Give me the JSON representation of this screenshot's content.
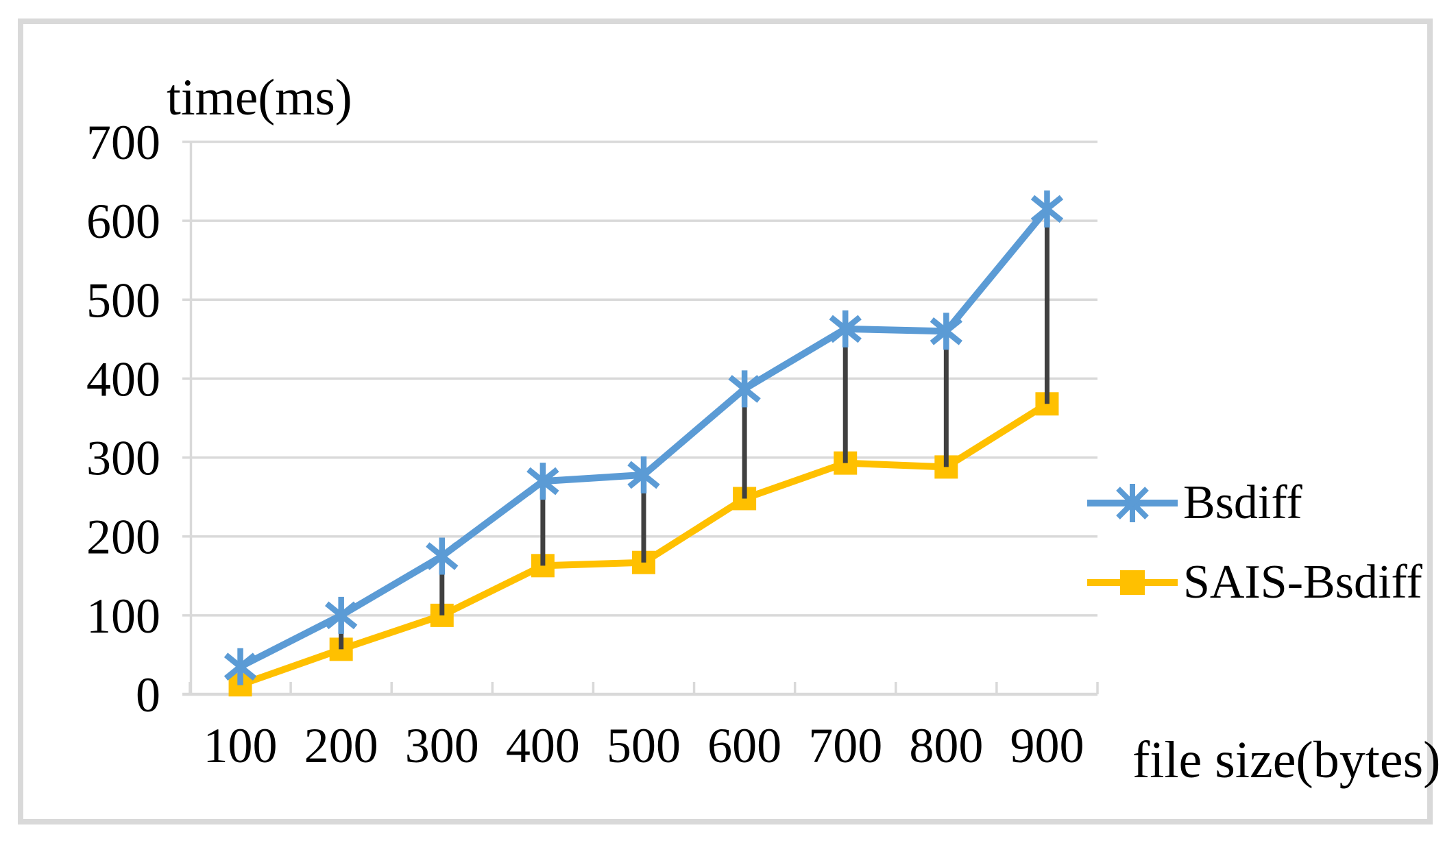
{
  "figure": {
    "background": "#ffffff",
    "border_color": "#d9d9d9"
  },
  "colors": {
    "gridline": "#d9d9d9",
    "axis_line": "#d9d9d9",
    "connector_line": "#404040",
    "text": "#000000",
    "series_bsdiff": "#5b9bd5",
    "series_sais": "#ffc000"
  },
  "chart_data": {
    "type": "line",
    "title": "",
    "y_axis_title": "time(ms)",
    "x_axis_title": "file size(bytes)",
    "categories": [
      "100",
      "200",
      "300",
      "400",
      "500",
      "600",
      "700",
      "800",
      "900"
    ],
    "y_ticks": [
      0,
      100,
      200,
      300,
      400,
      500,
      600,
      700
    ],
    "ylim": [
      0,
      700
    ],
    "grid": "horizontal",
    "legend_position": "right",
    "series": [
      {
        "name": "Bsdiff",
        "color": "#5b9bd5",
        "marker": "asterisk",
        "values": [
          35,
          100,
          175,
          270,
          278,
          387,
          463,
          460,
          615
        ]
      },
      {
        "name": "SAIS-Bsdiff",
        "color": "#ffc000",
        "marker": "square",
        "values": [
          12,
          57,
          100,
          163,
          167,
          248,
          293,
          288,
          368
        ]
      }
    ],
    "connectors": {
      "style": "vertical line joining the two series at every category",
      "color": "#404040"
    }
  }
}
